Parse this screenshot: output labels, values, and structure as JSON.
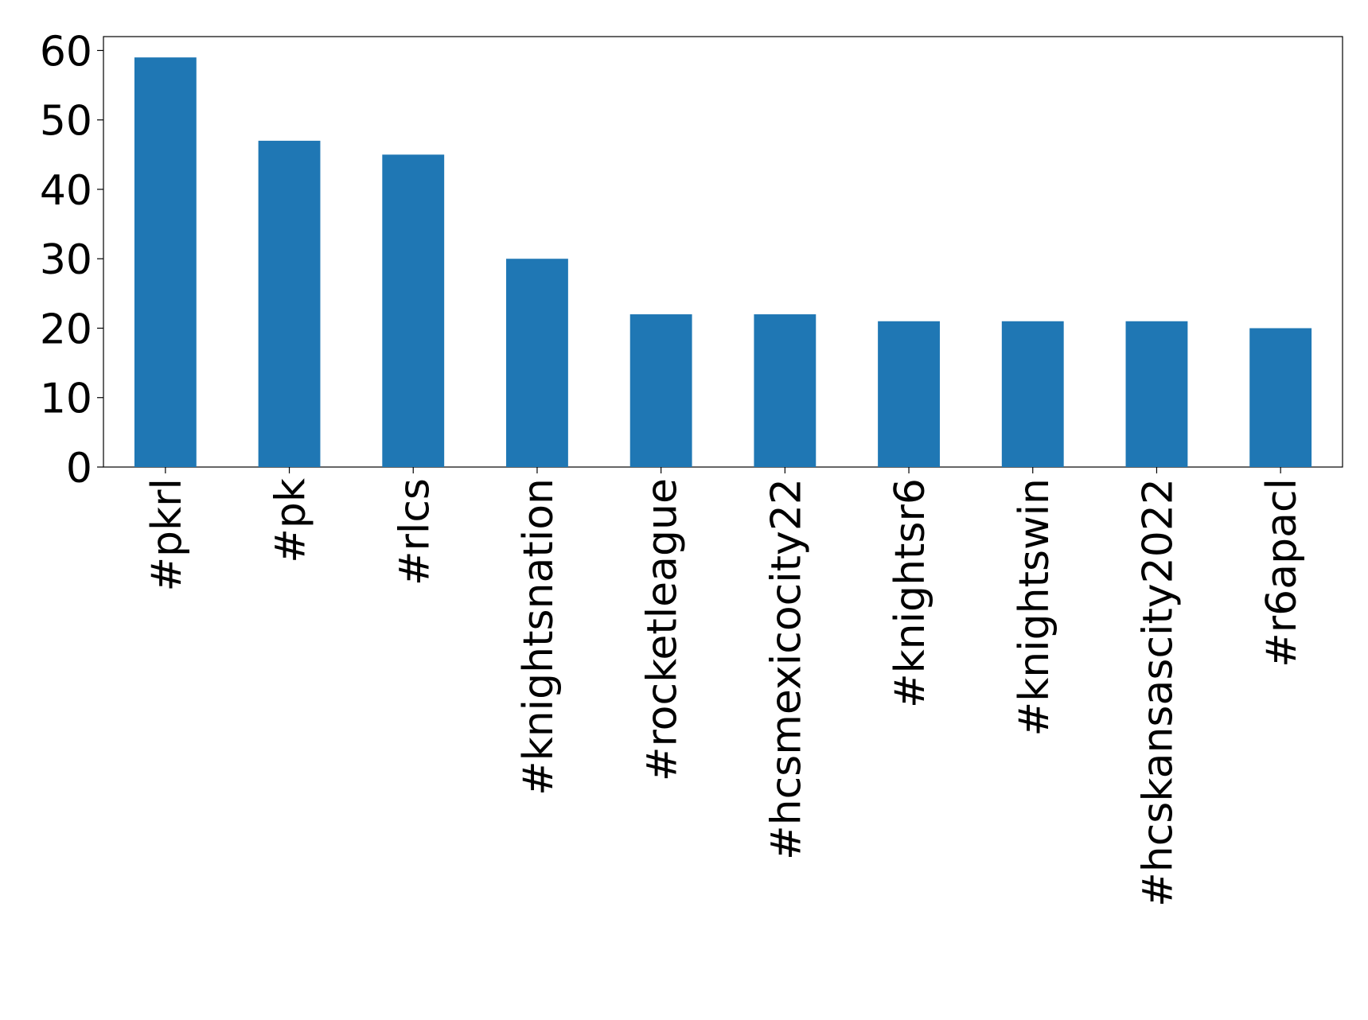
{
  "chart_data": {
    "type": "bar",
    "categories": [
      "#pkrl",
      "#pk",
      "#rlcs",
      "#knightsnation",
      "#rocketleague",
      "#hcsmexicocity22",
      "#knightsr6",
      "#knightswin",
      "#hcskansascity2022",
      "#r6apacl"
    ],
    "values": [
      59,
      47,
      45,
      30,
      22,
      22,
      21,
      21,
      21,
      20
    ],
    "color": "#1f77b4",
    "ylim": [
      0,
      62
    ],
    "yticks": [
      0,
      10,
      20,
      30,
      40,
      50,
      60
    ],
    "grid": false
  }
}
